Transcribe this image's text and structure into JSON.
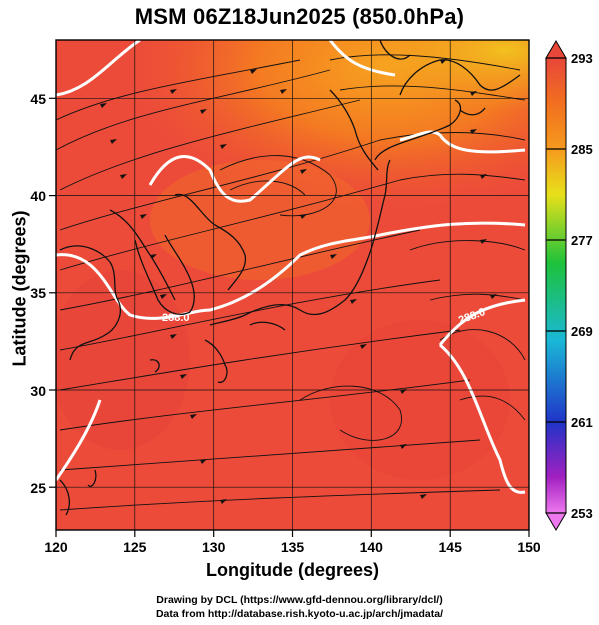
{
  "title": "MSM 06Z18Jun2025 (850.0hPa)",
  "axes": {
    "x_label": "Longitude (degrees)",
    "y_label": "Latitude  (degrees)",
    "x_ticks": [
      "120",
      "125",
      "130",
      "135",
      "140",
      "145",
      "150"
    ],
    "y_ticks": [
      "25",
      "30",
      "35",
      "40",
      "45"
    ],
    "x_range": [
      120,
      150
    ],
    "y_range": [
      22.4,
      47.6
    ],
    "grid_every_deg": 5
  },
  "colorbar": {
    "range": [
      253,
      293
    ],
    "ticks": [
      "293",
      "285",
      "277",
      "269",
      "261",
      "253"
    ],
    "colors": {
      "top": "#e8473a",
      "orange": "#f59a1e",
      "yellow": "#e8e01a",
      "green": "#1ec23a",
      "cyan": "#1ab8d6",
      "blue": "#2034c8",
      "violet": "#a020c0",
      "bottom": "#ee78ee"
    }
  },
  "map": {
    "field": "temperature",
    "overlay": "streamlines",
    "contour_label": "288.0"
  },
  "credits": {
    "line1": "Drawing by DCL (https://www.gfd-dennou.org/library/dcl/)",
    "line2": "Data from http://database.rish.kyoto-u.ac.jp/arch/jmadata/"
  }
}
